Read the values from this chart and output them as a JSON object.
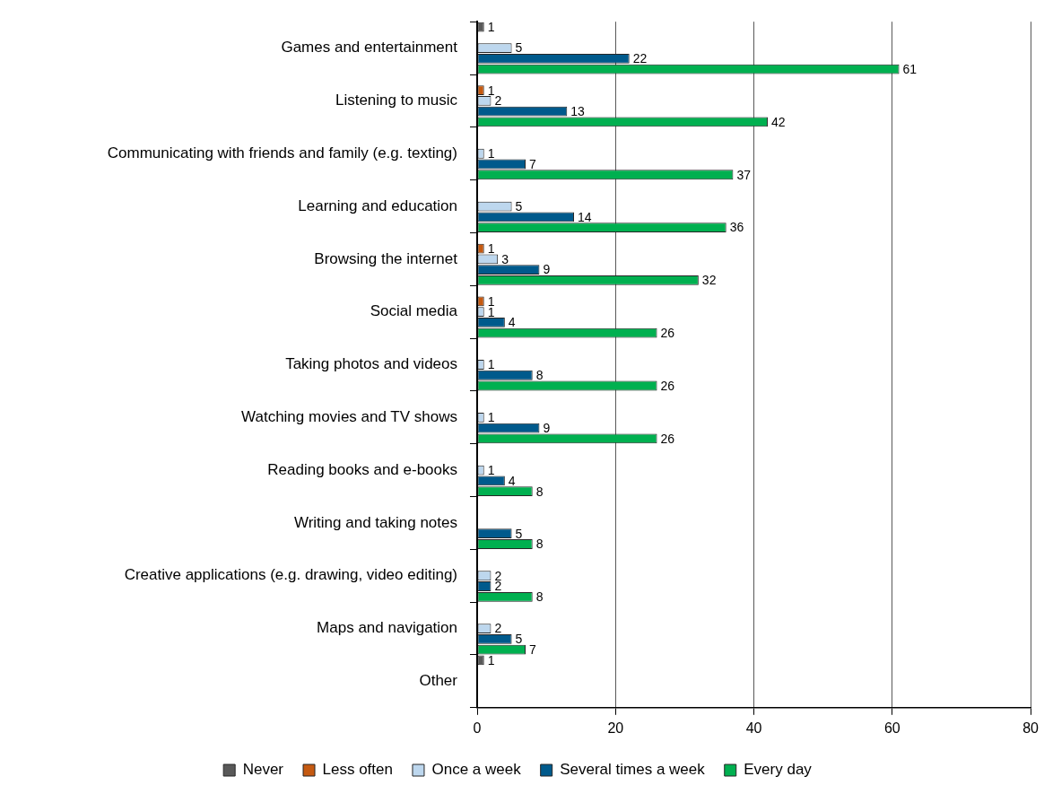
{
  "chart_data": {
    "type": "bar",
    "orientation": "horizontal",
    "categories": [
      "Games and entertainment",
      "Listening to music",
      "Communicating with friends and family (e.g. texting)",
      "Learning and education",
      "Browsing the internet",
      "Social media",
      "Taking photos and videos",
      "Watching movies and TV shows",
      "Reading books and e-books",
      "Writing and taking notes",
      "Creative applications (e.g. drawing, video editing)",
      "Maps and navigation",
      "Other"
    ],
    "series": [
      {
        "name": "Never",
        "color": "#595959",
        "values": [
          1,
          null,
          null,
          null,
          null,
          null,
          null,
          null,
          null,
          null,
          null,
          null,
          1
        ]
      },
      {
        "name": "Less often",
        "color": "#c55a11",
        "values": [
          null,
          1,
          null,
          null,
          1,
          1,
          null,
          null,
          null,
          null,
          null,
          null,
          null
        ]
      },
      {
        "name": "Once a week",
        "color": "#bdd7ee",
        "values": [
          5,
          2,
          1,
          5,
          3,
          1,
          1,
          1,
          1,
          null,
          2,
          2,
          null
        ]
      },
      {
        "name": "Several times a week",
        "color": "#005a8c",
        "values": [
          22,
          13,
          7,
          14,
          9,
          4,
          8,
          9,
          4,
          5,
          2,
          5,
          null
        ]
      },
      {
        "name": "Every day",
        "color": "#00b050",
        "values": [
          61,
          42,
          37,
          36,
          32,
          26,
          26,
          26,
          8,
          8,
          8,
          7,
          null
        ]
      }
    ],
    "xlim": [
      0,
      80
    ],
    "xticks": [
      0,
      20,
      40,
      60,
      80
    ],
    "grid": "x",
    "legend": "bottom",
    "data_labels": true
  }
}
